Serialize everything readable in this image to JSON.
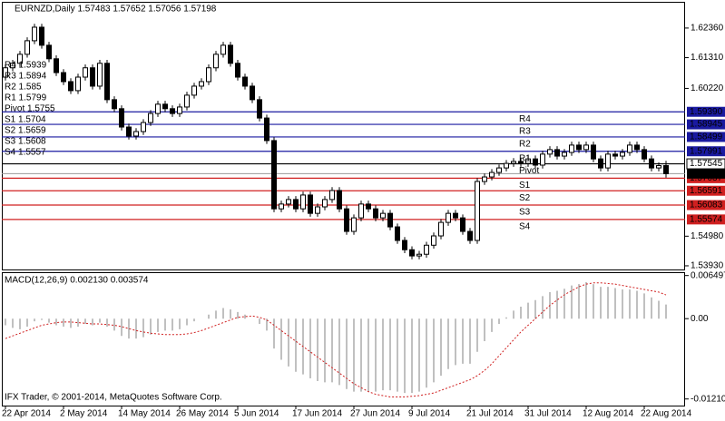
{
  "chart_data": [
    {
      "type": "candlestick",
      "title": "EURNZD,Daily 1.57483 1.57652 1.57056 1.57198",
      "categories": [
        "22 Apr 2014",
        null,
        null,
        null,
        null,
        null,
        null,
        null,
        "2 May 2014",
        null,
        null,
        null,
        null,
        null,
        null,
        null,
        "14 May 2014",
        null,
        null,
        null,
        null,
        null,
        null,
        null,
        "26 May 2014",
        null,
        null,
        null,
        null,
        null,
        null,
        null,
        "5 Jun 2014",
        null,
        null,
        null,
        null,
        null,
        null,
        null,
        "17 Jun 2014",
        null,
        null,
        null,
        null,
        null,
        null,
        null,
        "27 Jun 2014",
        null,
        null,
        null,
        null,
        null,
        null,
        null,
        "9 Jul 2014",
        null,
        null,
        null,
        null,
        null,
        null,
        null,
        "21 Jul 2014",
        null,
        null,
        null,
        null,
        null,
        null,
        null,
        "31 Jul 2014",
        null,
        null,
        null,
        null,
        null,
        null,
        null,
        "12 Aug 2014",
        null,
        null,
        null,
        null,
        null,
        null,
        null,
        "22 Aug 2014",
        null,
        null,
        null
      ],
      "open": [
        1.6062,
        1.6095,
        1.6111,
        1.6143,
        1.6191,
        1.6239,
        1.6175,
        1.6127,
        1.6078,
        1.6046,
        1.6014,
        1.6062,
        1.6095,
        1.603,
        1.6111,
        1.5982,
        1.595,
        1.5885,
        1.5853,
        1.5869,
        1.5901,
        1.5933,
        1.5966,
        1.595,
        1.5933,
        1.5956,
        1.5998,
        1.603,
        1.6046,
        1.6095,
        1.6143,
        1.6175,
        1.6111,
        1.6062,
        1.603,
        1.5982,
        1.5917,
        1.5837,
        1.5595,
        1.5612,
        1.5628,
        1.5595,
        1.5644,
        1.5579,
        1.5602,
        1.5628,
        1.566,
        1.5595,
        1.5515,
        1.5563,
        1.5612,
        1.5595,
        1.5563,
        1.5579,
        1.5531,
        1.5483,
        1.545,
        1.5428,
        1.5434,
        1.5466,
        1.5499,
        1.5547,
        1.5579,
        1.5563,
        1.5515,
        1.5483,
        1.5692,
        1.5708,
        1.5724,
        1.574,
        1.5756,
        1.5763,
        1.5756,
        1.5772,
        1.575,
        1.5789,
        1.5805,
        1.5782,
        1.5795,
        1.5821,
        1.5805,
        1.5821,
        1.5772,
        1.574,
        1.5789,
        1.5782,
        1.5795,
        1.5821,
        1.5805,
        1.5772,
        1.574,
        1.57483
      ],
      "high": [
        1.6107,
        1.6123,
        1.6155,
        1.6203,
        1.6251,
        1.6251,
        1.6187,
        1.6139,
        1.609,
        1.6058,
        1.6074,
        1.6107,
        1.6107,
        1.6123,
        1.6123,
        1.5994,
        1.5962,
        1.5897,
        1.5881,
        1.5913,
        1.5945,
        1.5978,
        1.5978,
        1.5962,
        1.5968,
        1.601,
        1.6042,
        1.6058,
        1.6107,
        1.6155,
        1.6187,
        1.6187,
        1.6123,
        1.6074,
        1.6042,
        1.5994,
        1.5929,
        1.5849,
        1.5624,
        1.564,
        1.564,
        1.5656,
        1.5656,
        1.5614,
        1.564,
        1.5672,
        1.5672,
        1.5607,
        1.5575,
        1.5624,
        1.5624,
        1.5607,
        1.5591,
        1.5591,
        1.5543,
        1.5495,
        1.5462,
        1.5446,
        1.5478,
        1.5511,
        1.5559,
        1.5591,
        1.5591,
        1.5575,
        1.5527,
        1.5704,
        1.572,
        1.5736,
        1.5752,
        1.5768,
        1.5775,
        1.5775,
        1.5784,
        1.5784,
        1.5801,
        1.5817,
        1.5817,
        1.5807,
        1.5833,
        1.5833,
        1.5833,
        1.5833,
        1.5784,
        1.5801,
        1.5801,
        1.5807,
        1.5833,
        1.5833,
        1.5817,
        1.5784,
        1.576,
        1.57652
      ],
      "low": [
        1.605,
        1.6083,
        1.6099,
        1.6131,
        1.6179,
        1.6163,
        1.6115,
        1.6066,
        1.6034,
        1.6002,
        1.6002,
        1.605,
        1.6018,
        1.6018,
        1.597,
        1.5938,
        1.5873,
        1.5841,
        1.5841,
        1.5857,
        1.5889,
        1.5921,
        1.5938,
        1.5921,
        1.5921,
        1.5944,
        1.5986,
        1.6018,
        1.6034,
        1.6083,
        1.6131,
        1.6099,
        1.605,
        1.6018,
        1.597,
        1.5905,
        1.5825,
        1.5583,
        1.5583,
        1.56,
        1.5583,
        1.5583,
        1.5567,
        1.5567,
        1.559,
        1.5616,
        1.5583,
        1.5503,
        1.5503,
        1.5551,
        1.5583,
        1.5551,
        1.5551,
        1.5519,
        1.5471,
        1.5438,
        1.5416,
        1.5416,
        1.5422,
        1.5454,
        1.5487,
        1.5535,
        1.5551,
        1.5503,
        1.5471,
        1.5471,
        1.568,
        1.5696,
        1.5712,
        1.5728,
        1.5744,
        1.5744,
        1.5744,
        1.5738,
        1.5738,
        1.5777,
        1.577,
        1.577,
        1.5783,
        1.5793,
        1.5793,
        1.576,
        1.5728,
        1.5728,
        1.577,
        1.577,
        1.5783,
        1.5793,
        1.576,
        1.5728,
        1.5728,
        1.57056
      ],
      "close": [
        1.6095,
        1.6111,
        1.6143,
        1.6191,
        1.6239,
        1.6175,
        1.6127,
        1.6078,
        1.6046,
        1.6014,
        1.6062,
        1.6095,
        1.603,
        1.6111,
        1.5982,
        1.595,
        1.5885,
        1.5853,
        1.5869,
        1.5901,
        1.5933,
        1.5966,
        1.595,
        1.5933,
        1.5956,
        1.5998,
        1.603,
        1.6046,
        1.6095,
        1.6143,
        1.6175,
        1.6111,
        1.6062,
        1.603,
        1.5982,
        1.5917,
        1.5837,
        1.5595,
        1.5612,
        1.5628,
        1.5595,
        1.5644,
        1.5579,
        1.5602,
        1.5628,
        1.566,
        1.5595,
        1.5515,
        1.5563,
        1.5612,
        1.5595,
        1.5563,
        1.5579,
        1.5531,
        1.5483,
        1.545,
        1.5428,
        1.5434,
        1.5466,
        1.5499,
        1.5547,
        1.5579,
        1.5563,
        1.5515,
        1.5483,
        1.5692,
        1.5708,
        1.5724,
        1.574,
        1.5756,
        1.5763,
        1.5756,
        1.5772,
        1.575,
        1.5789,
        1.5805,
        1.5782,
        1.5795,
        1.5821,
        1.5805,
        1.5821,
        1.5772,
        1.574,
        1.5789,
        1.5782,
        1.5795,
        1.5821,
        1.5805,
        1.5772,
        1.574,
        1.57483,
        1.57198
      ],
      "up_color": "#ffffff",
      "down_color": "#000000",
      "wick_color": "#000000",
      "ylim": [
        1.538,
        1.6329
      ],
      "yticks": [
        {
          "value": 1.6236,
          "label": "1.62360"
        },
        {
          "value": 1.6131,
          "label": "1.61310"
        },
        {
          "value": 1.6022,
          "label": "1.60220"
        },
        {
          "value": 1.5498,
          "label": "1.54980"
        },
        {
          "value": 1.5393,
          "label": "1.53930"
        }
      ],
      "levels": [
        {
          "name": "R4",
          "text": "R4 1.5939",
          "price": {
            "value": 1.5939,
            "label": "1.59390"
          },
          "color": "#1a1aa0"
        },
        {
          "name": "R3",
          "text": "R3 1.5894",
          "price": {
            "value": 1.58945,
            "label": "1.58945"
          },
          "color": "#1a1aa0"
        },
        {
          "name": "R2",
          "text": "R2 1.585",
          "price": {
            "value": 1.58499,
            "label": "1.58499"
          },
          "color": "#1a1aa0"
        },
        {
          "name": "R1",
          "text": "R1 1.5799",
          "price": {
            "value": 1.57991,
            "label": "1.57991"
          },
          "color": "#1a1aa0"
        },
        {
          "name": "Pivot",
          "text": "Pivot 1.5755",
          "price": {
            "value": 1.57545,
            "label": "1.57545"
          },
          "color": "#000000"
        },
        {
          "name": "S1",
          "text": "S1 1.5704",
          "price": {
            "value": 1.57037,
            "label": "1.57037"
          },
          "color": "#d02020"
        },
        {
          "name": "S2",
          "text": "S2 1.5659",
          "price": {
            "value": 1.56591,
            "label": "1.56591"
          },
          "color": "#d02020"
        },
        {
          "name": "S3",
          "text": "S3 1.5608",
          "price": {
            "value": 1.56083,
            "label": "1.56083"
          },
          "color": "#d02020"
        },
        {
          "name": "S4",
          "text": "S4 1.5557",
          "price": {
            "value": 1.55574,
            "label": "1.55574"
          },
          "color": "#d02020"
        }
      ],
      "level_name_color": "#c03a2b"
    },
    {
      "type": "macd",
      "title": "MACD(12,26,9) 0.002130 0.003574",
      "macd": [
        -0.001,
        -0.0014,
        -0.0016,
        -0.0012,
        -0.0004,
        -0.0002,
        -0.0006,
        -0.001,
        -0.0012,
        -0.0014,
        -0.0012,
        -0.0008,
        -0.001,
        -0.0006,
        -0.0012,
        -0.0018,
        -0.0026,
        -0.003,
        -0.003,
        -0.0028,
        -0.0024,
        -0.002,
        -0.0018,
        -0.0018,
        -0.0016,
        -0.001,
        -0.0004,
        0.0,
        0.0006,
        0.0012,
        0.0016,
        0.0014,
        0.001,
        0.0006,
        0.0,
        -0.0008,
        -0.0018,
        -0.0045,
        -0.0062,
        -0.0072,
        -0.008,
        -0.0084,
        -0.009,
        -0.0094,
        -0.0096,
        -0.0096,
        -0.01,
        -0.0106,
        -0.011,
        -0.011,
        -0.011,
        -0.011,
        -0.0108,
        -0.0108,
        -0.011,
        -0.0112,
        -0.0112,
        -0.011,
        -0.0104,
        -0.0096,
        -0.0086,
        -0.0076,
        -0.007,
        -0.0068,
        -0.0068,
        -0.005,
        -0.0034,
        -0.002,
        -0.0008,
        0.0002,
        0.0012,
        0.0018,
        0.0024,
        0.0028,
        0.0034,
        0.004,
        0.0042,
        0.0045,
        0.005,
        0.0052,
        0.0055,
        0.0052,
        0.0048,
        0.0048,
        0.0046,
        0.0044,
        0.0044,
        0.0042,
        0.0038,
        0.0032,
        0.0027,
        0.00213
      ],
      "signal": [
        -0.003,
        -0.0026,
        -0.0022,
        -0.0018,
        -0.0014,
        -0.001,
        -0.0008,
        -0.0006,
        -0.0005,
        -0.0005,
        -0.0006,
        -0.0007,
        -0.0008,
        -0.0008,
        -0.0009,
        -0.001,
        -0.0012,
        -0.0015,
        -0.0018,
        -0.002,
        -0.0022,
        -0.0023,
        -0.0024,
        -0.0024,
        -0.0024,
        -0.0023,
        -0.0021,
        -0.0018,
        -0.0014,
        -0.001,
        -0.0006,
        -0.0002,
        0.0002,
        0.0003,
        0.0004,
        0.0002,
        -0.0002,
        -0.001,
        -0.0018,
        -0.0026,
        -0.0034,
        -0.0042,
        -0.005,
        -0.0058,
        -0.0066,
        -0.0074,
        -0.0082,
        -0.009,
        -0.0098,
        -0.0104,
        -0.011,
        -0.0114,
        -0.0116,
        -0.0118,
        -0.0118,
        -0.0118,
        -0.0117,
        -0.0116,
        -0.0114,
        -0.0112,
        -0.0108,
        -0.0104,
        -0.01,
        -0.0096,
        -0.0092,
        -0.0086,
        -0.0078,
        -0.0068,
        -0.0056,
        -0.0044,
        -0.0032,
        -0.002,
        -0.001,
        0.0,
        0.001,
        0.002,
        0.0028,
        0.0036,
        0.0042,
        0.0048,
        0.0052,
        0.0054,
        0.0054,
        0.0053,
        0.0052,
        0.005,
        0.0048,
        0.0046,
        0.0044,
        0.0042,
        0.004,
        0.003574
      ],
      "macd_color": "#808080",
      "signal_color": "#d02020",
      "ylim": [
        -0.0131,
        0.007
      ],
      "yticks": [
        0.006497,
        {
          "value": 0,
          "label": "0.00"
        },
        -0.012104
      ]
    }
  ],
  "footer": "IFX Trader, © 2001-2014, MetaQuotes Software Corp."
}
